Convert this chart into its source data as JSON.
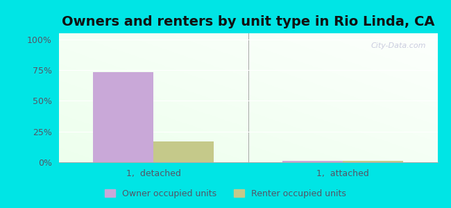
{
  "title": "Owners and renters by unit type in Rio Linda, CA",
  "categories": [
    "1,  detached",
    "1,  attached"
  ],
  "owner_values": [
    73.5,
    1.2
  ],
  "renter_values": [
    17.0,
    1.0
  ],
  "owner_color": "#c9a8d8",
  "renter_color": "#c5c98a",
  "yticks": [
    0,
    25,
    50,
    75,
    100
  ],
  "ytick_labels": [
    "0%",
    "25%",
    "50%",
    "75%",
    "100%"
  ],
  "ylim": [
    0,
    105
  ],
  "bar_width": 0.32,
  "legend_owner": "Owner occupied units",
  "legend_renter": "Renter occupied units",
  "outer_bg": "#00e5e5",
  "watermark": "City-Data.com",
  "title_fontsize": 14,
  "tick_fontsize": 9,
  "tick_color": "#555566"
}
